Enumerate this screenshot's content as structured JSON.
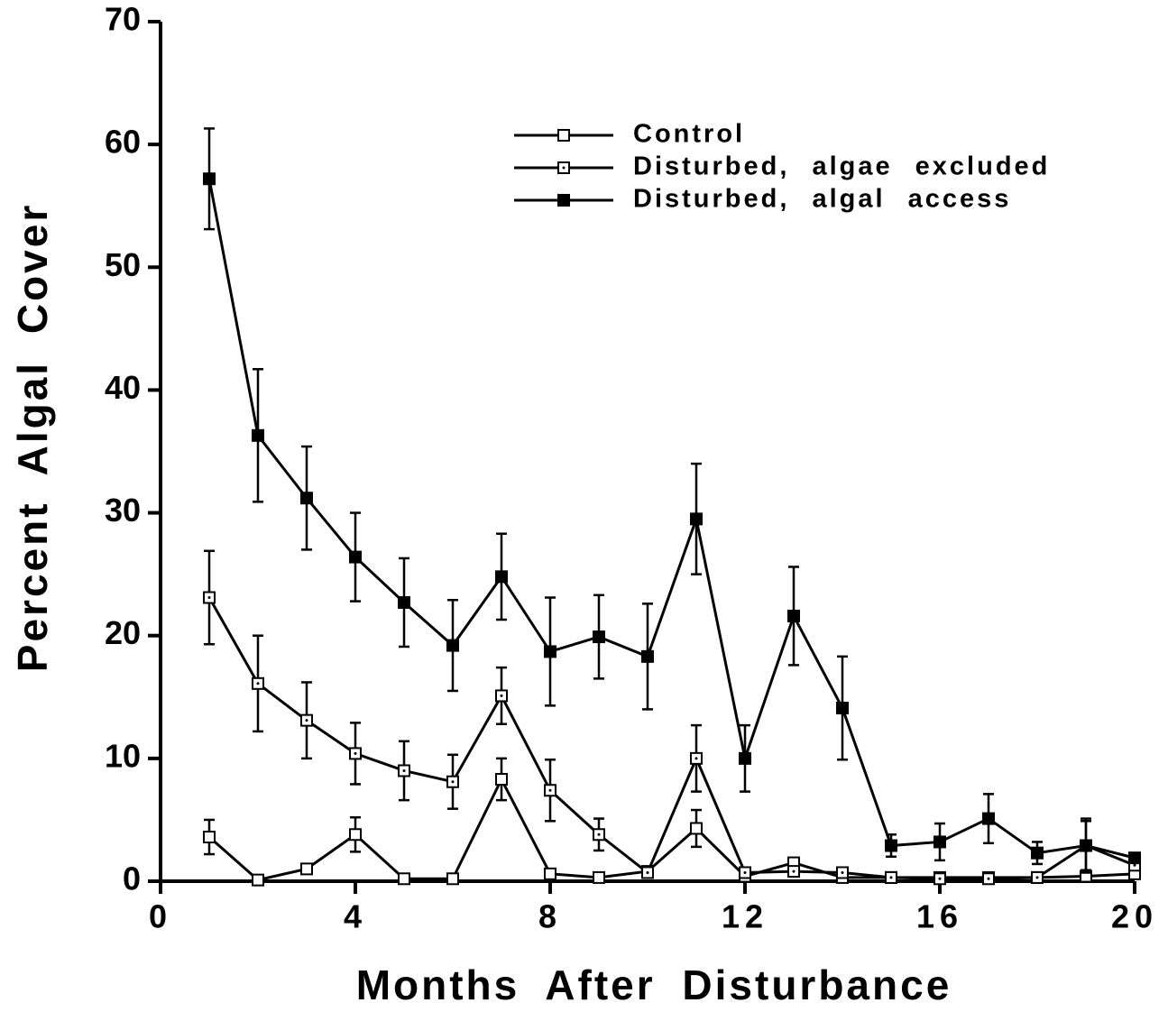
{
  "chart_data": {
    "type": "line",
    "xlabel": "Months After Disturbance",
    "ylabel": "Percent Algal Cover",
    "xlim": [
      0,
      20
    ],
    "xticks": [
      0,
      4,
      8,
      12,
      16,
      20
    ],
    "ylim": [
      0,
      70
    ],
    "yticks": [
      0,
      10,
      20,
      30,
      40,
      50,
      60,
      70
    ],
    "x": [
      1,
      2,
      3,
      4,
      5,
      6,
      7,
      8,
      9,
      10,
      11,
      12,
      13,
      14,
      15,
      16,
      17,
      18,
      19,
      20
    ],
    "legend": "upper right",
    "series": [
      {
        "name": "Control",
        "color": "#000000",
        "marker": "open-square",
        "values": [
          3.6,
          0.1,
          1.0,
          3.8,
          0.2,
          0.2,
          8.3,
          0.6,
          0.3,
          0.8,
          4.3,
          0.4,
          1.5,
          0.3,
          0.3,
          0.3,
          0.3,
          0.3,
          0.4,
          0.6
        ],
        "errors": [
          1.4,
          null,
          null,
          1.4,
          null,
          null,
          1.7,
          null,
          null,
          null,
          1.5,
          null,
          null,
          null,
          null,
          null,
          null,
          null,
          null,
          null
        ]
      },
      {
        "name": "Disturbed, algae excluded",
        "color": "#000000",
        "marker": "dotted-square",
        "values": [
          23.1,
          16.1,
          13.1,
          10.4,
          9.0,
          8.1,
          15.1,
          7.4,
          3.8,
          0.7,
          10.0,
          0.7,
          0.8,
          0.7,
          0.3,
          0.2,
          0.2,
          0.3,
          2.9,
          1.3
        ],
        "errors": [
          3.8,
          3.9,
          3.1,
          2.5,
          2.4,
          2.2,
          2.3,
          2.5,
          1.3,
          null,
          2.7,
          null,
          null,
          null,
          null,
          null,
          null,
          null,
          2.0,
          null
        ]
      },
      {
        "name": "Disturbed, algal access",
        "color": "#000000",
        "marker": "filled-square",
        "values": [
          57.2,
          36.3,
          31.2,
          26.4,
          22.7,
          19.2,
          24.8,
          18.7,
          19.9,
          18.3,
          29.5,
          10.0,
          21.6,
          14.1,
          2.9,
          3.2,
          5.1,
          2.3,
          2.9,
          1.9
        ],
        "errors": [
          4.1,
          5.4,
          4.2,
          3.6,
          3.6,
          3.7,
          3.5,
          4.4,
          3.4,
          4.3,
          4.5,
          2.7,
          4.0,
          4.2,
          0.9,
          1.5,
          2.0,
          0.9,
          2.2,
          null
        ]
      }
    ]
  }
}
